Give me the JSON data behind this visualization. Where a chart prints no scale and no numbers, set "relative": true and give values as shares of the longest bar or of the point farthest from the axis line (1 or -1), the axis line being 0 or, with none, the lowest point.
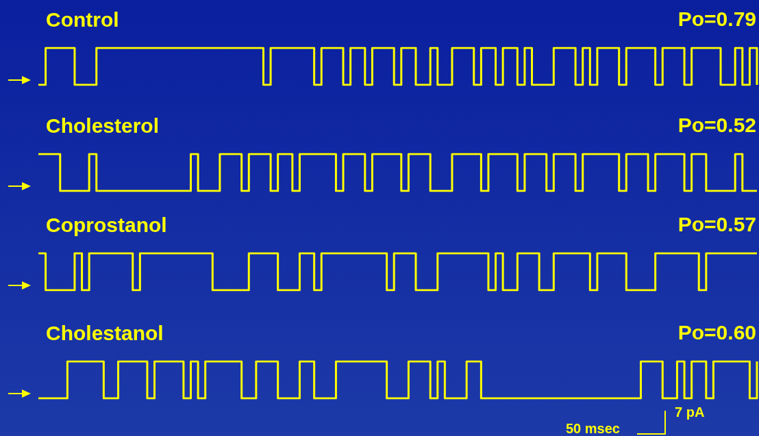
{
  "chart_data": [
    {
      "type": "step",
      "title": "Control",
      "annotations": [
        "Po=0.79"
      ],
      "relative": true,
      "marker": "none",
      "categories": [
        null,
        null,
        null,
        null,
        null,
        null,
        null,
        null,
        null,
        null,
        null,
        null,
        null,
        null,
        null,
        null,
        null,
        null,
        null,
        null,
        null,
        null,
        null,
        null,
        null,
        null,
        null,
        null,
        null,
        null,
        null,
        null,
        null,
        null,
        null,
        null,
        null,
        null,
        null,
        null,
        null,
        null,
        null,
        null,
        null,
        null,
        null,
        null,
        null,
        null,
        null,
        null,
        null,
        null,
        null,
        null,
        null,
        null,
        null,
        null,
        null,
        null,
        null,
        null,
        null,
        null,
        null,
        null,
        null,
        null,
        null,
        null,
        null,
        null,
        null,
        null,
        null,
        null,
        null,
        null,
        null,
        null,
        null,
        null,
        null,
        null,
        null,
        null,
        null,
        null,
        null,
        null,
        null,
        null,
        null,
        null,
        null,
        null,
        null,
        null
      ],
      "series": [
        {
          "color": "#ffff00",
          "values": [
            0,
            1,
            1,
            1,
            1,
            0,
            0,
            0,
            1,
            1,
            1,
            1,
            1,
            1,
            1,
            1,
            1,
            1,
            1,
            1,
            1,
            1,
            1,
            1,
            1,
            1,
            1,
            1,
            1,
            1,
            1,
            0,
            1,
            1,
            1,
            1,
            1,
            1,
            0,
            1,
            1,
            1,
            0,
            1,
            1,
            0,
            1,
            1,
            1,
            0,
            1,
            1,
            0,
            0,
            1,
            0,
            0,
            1,
            1,
            1,
            0,
            1,
            1,
            0,
            1,
            1,
            0,
            1,
            0,
            0,
            0,
            1,
            1,
            1,
            0,
            1,
            0,
            1,
            1,
            1,
            0,
            1,
            1,
            1,
            1,
            0,
            1,
            1,
            1,
            0,
            1,
            1,
            1,
            1,
            0,
            0,
            1,
            0,
            1,
            0
          ]
        }
      ]
    },
    {
      "type": "step",
      "title": "Cholesterol",
      "annotations": [
        "Po=0.52"
      ],
      "relative": true,
      "marker": "none",
      "categories": [
        null,
        null,
        null,
        null,
        null,
        null,
        null,
        null,
        null,
        null,
        null,
        null,
        null,
        null,
        null,
        null,
        null,
        null,
        null,
        null,
        null,
        null,
        null,
        null,
        null,
        null,
        null,
        null,
        null,
        null,
        null,
        null,
        null,
        null,
        null,
        null,
        null,
        null,
        null,
        null,
        null,
        null,
        null,
        null,
        null,
        null,
        null,
        null,
        null,
        null,
        null,
        null,
        null,
        null,
        null,
        null,
        null,
        null,
        null,
        null,
        null,
        null,
        null,
        null,
        null,
        null,
        null,
        null,
        null,
        null,
        null,
        null,
        null,
        null,
        null,
        null,
        null,
        null,
        null,
        null,
        null,
        null,
        null,
        null,
        null,
        null,
        null,
        null,
        null,
        null,
        null,
        null,
        null,
        null,
        null,
        null,
        null,
        null,
        null,
        null
      ],
      "series": [
        {
          "color": "#ffff00",
          "values": [
            1,
            1,
            1,
            0,
            0,
            0,
            0,
            1,
            0,
            0,
            0,
            0,
            0,
            0,
            0,
            0,
            0,
            0,
            0,
            0,
            0,
            1,
            0,
            0,
            0,
            1,
            1,
            1,
            0,
            1,
            1,
            1,
            0,
            1,
            1,
            0,
            1,
            1,
            1,
            1,
            1,
            0,
            1,
            1,
            1,
            0,
            1,
            1,
            1,
            1,
            0,
            1,
            1,
            1,
            0,
            0,
            0,
            1,
            1,
            1,
            1,
            0,
            1,
            1,
            1,
            1,
            0,
            1,
            1,
            1,
            0,
            1,
            1,
            1,
            0,
            1,
            1,
            1,
            1,
            1,
            0,
            1,
            1,
            1,
            0,
            1,
            1,
            1,
            1,
            0,
            1,
            1,
            0,
            0,
            0,
            0,
            1,
            0,
            0,
            0
          ]
        }
      ]
    },
    {
      "type": "step",
      "title": "Coprostanol",
      "annotations": [
        "Po=0.57"
      ],
      "relative": true,
      "marker": "none",
      "categories": [
        null,
        null,
        null,
        null,
        null,
        null,
        null,
        null,
        null,
        null,
        null,
        null,
        null,
        null,
        null,
        null,
        null,
        null,
        null,
        null,
        null,
        null,
        null,
        null,
        null,
        null,
        null,
        null,
        null,
        null,
        null,
        null,
        null,
        null,
        null,
        null,
        null,
        null,
        null,
        null,
        null,
        null,
        null,
        null,
        null,
        null,
        null,
        null,
        null,
        null,
        null,
        null,
        null,
        null,
        null,
        null,
        null,
        null,
        null,
        null,
        null,
        null,
        null,
        null,
        null,
        null,
        null,
        null,
        null,
        null,
        null,
        null,
        null,
        null,
        null,
        null,
        null,
        null,
        null,
        null,
        null,
        null,
        null,
        null,
        null,
        null,
        null,
        null,
        null,
        null,
        null,
        null,
        null,
        null,
        null,
        null,
        null,
        null,
        null,
        null
      ],
      "series": [
        {
          "color": "#ffff00",
          "values": [
            1,
            0,
            0,
            0,
            0,
            1,
            0,
            1,
            1,
            1,
            1,
            1,
            1,
            0,
            1,
            1,
            1,
            1,
            1,
            1,
            1,
            1,
            1,
            1,
            0,
            0,
            0,
            0,
            0,
            1,
            1,
            1,
            1,
            0,
            0,
            0,
            1,
            1,
            0,
            1,
            1,
            1,
            1,
            1,
            1,
            1,
            1,
            1,
            0,
            1,
            1,
            1,
            0,
            0,
            0,
            1,
            1,
            1,
            1,
            1,
            1,
            1,
            0,
            1,
            0,
            0,
            1,
            1,
            1,
            0,
            0,
            1,
            1,
            1,
            1,
            1,
            0,
            1,
            1,
            1,
            1,
            0,
            0,
            0,
            0,
            1,
            1,
            1,
            1,
            1,
            1,
            0,
            1,
            1,
            1,
            1,
            1,
            1,
            1,
            1
          ]
        }
      ]
    },
    {
      "type": "step",
      "title": "Cholestanol",
      "annotations": [
        "Po=0.60",
        "50 msec",
        "7 pA"
      ],
      "relative": true,
      "marker": "none",
      "categories": [
        null,
        null,
        null,
        null,
        null,
        null,
        null,
        null,
        null,
        null,
        null,
        null,
        null,
        null,
        null,
        null,
        null,
        null,
        null,
        null,
        null,
        null,
        null,
        null,
        null,
        null,
        null,
        null,
        null,
        null,
        null,
        null,
        null,
        null,
        null,
        null,
        null,
        null,
        null,
        null,
        null,
        null,
        null,
        null,
        null,
        null,
        null,
        null,
        null,
        null,
        null,
        null,
        null,
        null,
        null,
        null,
        null,
        null,
        null,
        null,
        null,
        null,
        null,
        null,
        null,
        null,
        null,
        null,
        null,
        null,
        null,
        null,
        null,
        null,
        null,
        null,
        null,
        null,
        null,
        null,
        null,
        null,
        null,
        null,
        null,
        null,
        null,
        null,
        null,
        null,
        null,
        null,
        null,
        null,
        null,
        null,
        null,
        null,
        null,
        null
      ],
      "series": [
        {
          "color": "#ffff00",
          "values": [
            0,
            0,
            0,
            0,
            1,
            1,
            1,
            1,
            1,
            0,
            0,
            1,
            1,
            1,
            1,
            0,
            1,
            1,
            1,
            1,
            0,
            1,
            0,
            1,
            1,
            1,
            1,
            1,
            0,
            0,
            1,
            1,
            1,
            0,
            0,
            0,
            1,
            1,
            0,
            0,
            0,
            1,
            1,
            1,
            1,
            1,
            1,
            1,
            0,
            0,
            0,
            1,
            1,
            1,
            0,
            1,
            0,
            0,
            0,
            1,
            1,
            0,
            0,
            0,
            0,
            0,
            0,
            0,
            0,
            0,
            0,
            0,
            0,
            0,
            0,
            0,
            0,
            0,
            0,
            0,
            0,
            0,
            0,
            1,
            1,
            1,
            0,
            0,
            1,
            0,
            1,
            1,
            0,
            1,
            1,
            1,
            1,
            1,
            0,
            1
          ]
        }
      ]
    }
  ]
}
